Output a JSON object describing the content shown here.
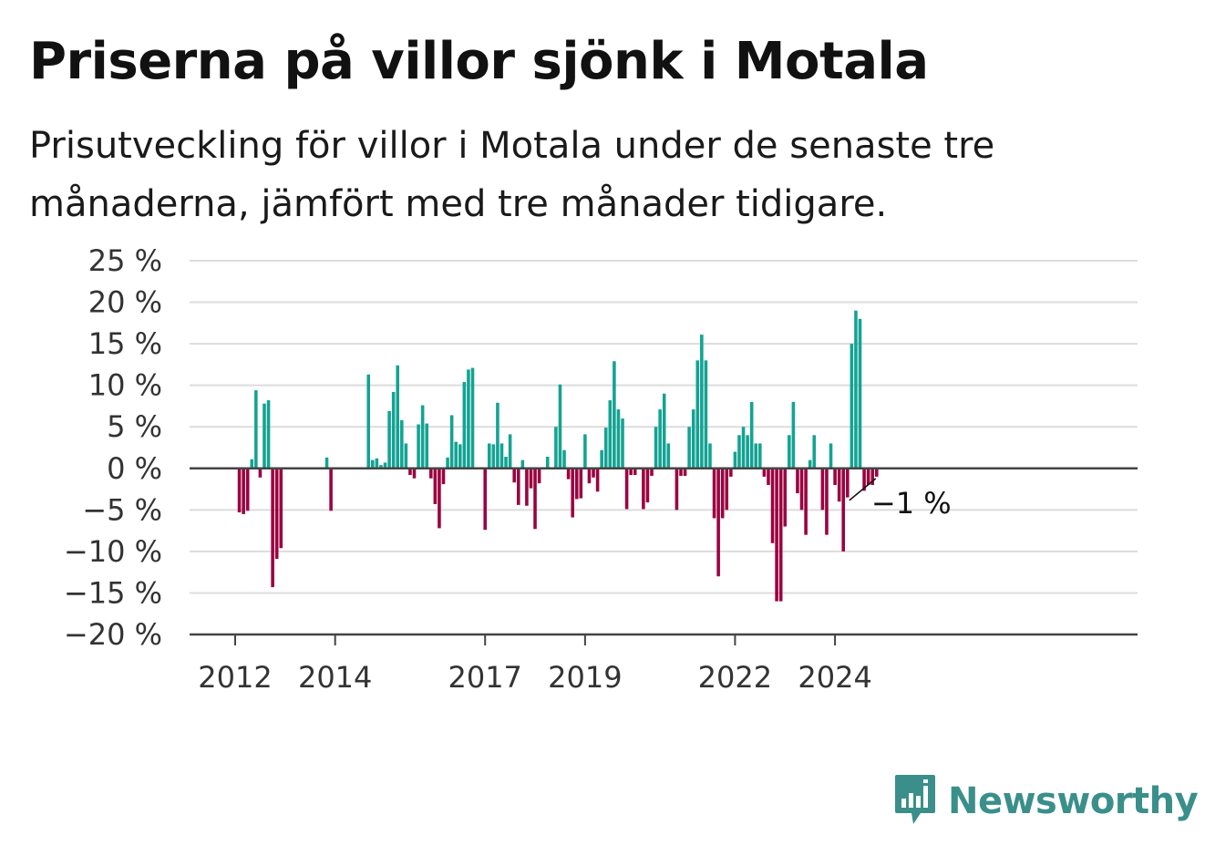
{
  "header": {
    "title": "Priserna på villor sjönk i Motala",
    "subtitle": "Prisutveckling för villor i Motala under de senaste tre månaderna, jämfört med tre månader tidigare."
  },
  "brand": {
    "name": "Newsworthy",
    "icon": "bar-chart-speech-bubble-icon",
    "color": "#3a8f8a"
  },
  "chart_data": {
    "type": "bar",
    "x_start": "2012-01",
    "x_step": "month",
    "xticks": [
      "2012",
      "2014",
      "2017",
      "2019",
      "2022",
      "2024"
    ],
    "yticks": [
      "25 %",
      "20 %",
      "15 %",
      "10 %",
      "5 %",
      "0 %",
      "−5 %",
      "−10 %",
      "−15 %",
      "−20 %"
    ],
    "ylim": [
      -20,
      25
    ],
    "grid": "horizontal",
    "colors": {
      "positive": "#13a393",
      "negative": "#9b0040"
    },
    "annotation": {
      "text": "−1 %",
      "target": "last"
    },
    "values": [
      0,
      -5.3,
      -5.5,
      -5.1,
      1.1,
      9.4,
      -1.1,
      7.8,
      8.2,
      -14.3,
      -10.9,
      -9.6,
      null,
      null,
      null,
      null,
      null,
      null,
      null,
      null,
      null,
      null,
      1.3,
      -5.1,
      null,
      null,
      null,
      null,
      null,
      null,
      null,
      null,
      11.3,
      1.0,
      1.2,
      0.4,
      0.7,
      6.9,
      9.2,
      12.4,
      5.8,
      3.0,
      -0.8,
      -1.2,
      5.3,
      7.6,
      5.4,
      -1.2,
      -4.3,
      -7.2,
      -1.9,
      1.3,
      6.4,
      3.2,
      2.9,
      10.4,
      11.9,
      12.1,
      0,
      0,
      -7.4,
      3.0,
      2.9,
      7.9,
      3.0,
      1.4,
      4.1,
      -1.7,
      -4.4,
      1.0,
      -4.5,
      -2.4,
      -7.3,
      -1.8,
      0,
      1.4,
      0,
      5.0,
      10.1,
      2.2,
      -1.3,
      -5.9,
      -3.7,
      -3.6,
      4.1,
      -1.8,
      -1.1,
      -2.8,
      2.2,
      4.9,
      8.2,
      12.9,
      7.1,
      6.0,
      -4.9,
      -0.8,
      -0.8,
      0,
      -4.9,
      -4.1,
      -0.9,
      5.0,
      7.1,
      9.0,
      3.0,
      0,
      -5.0,
      -0.9,
      -0.9,
      5.0,
      7.1,
      13.0,
      16.1,
      13.0,
      3.0,
      -6.0,
      -13.0,
      -6.0,
      -5.0,
      -1.0,
      2.0,
      4.0,
      5.0,
      4.0,
      8.0,
      3.0,
      3.0,
      -1.0,
      -2.0,
      -9.0,
      -16.0,
      -16.0,
      -7.0,
      4.0,
      8.0,
      -3.0,
      -5.0,
      -8.0,
      1.0,
      4.0,
      0,
      -5.0,
      -8.0,
      3.0,
      -2.0,
      -4.0,
      -10.0,
      -3.5,
      15.0,
      19.0,
      18.0,
      -2.7,
      -2.0,
      -2.0,
      -1.0
    ]
  }
}
